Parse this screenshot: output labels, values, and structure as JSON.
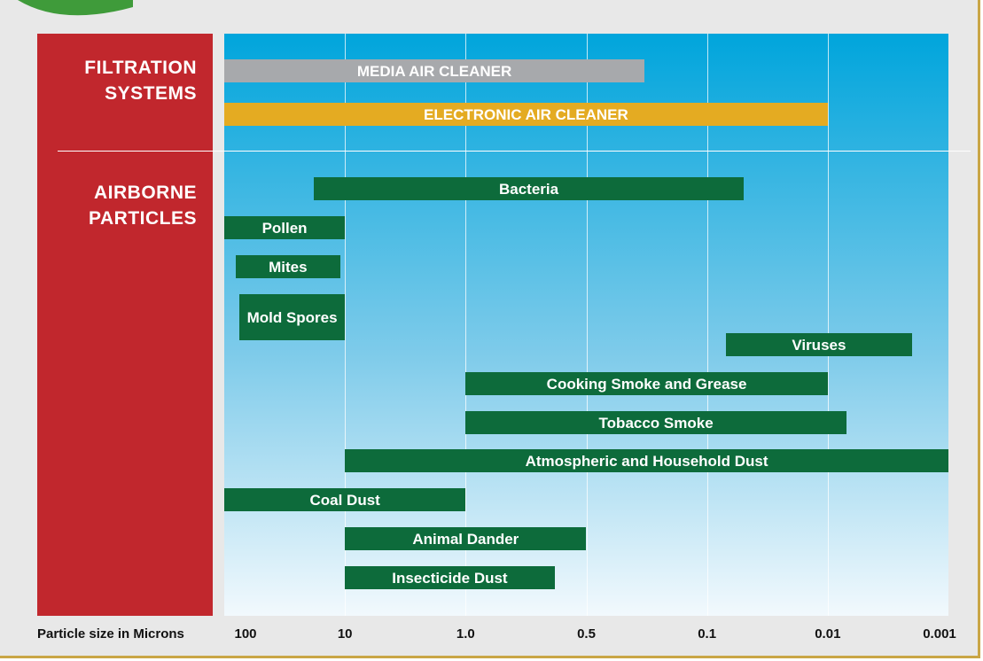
{
  "chart_data": {
    "type": "range-bar",
    "x_label": "Particle size in Microns",
    "group_labels": [
      "FILTRATION SYSTEMS",
      "AIRBORNE PARTICLES"
    ],
    "xlim": [
      100,
      0.001
    ],
    "xticks": [
      100,
      10,
      {
        "value": 1,
        "label": "1.0"
      },
      0.5,
      0.1,
      0.01,
      0.001
    ],
    "grid": true,
    "bars": [
      {
        "label": "MEDIA AIR CLEANER",
        "start": 100,
        "end": 0.23,
        "color": "#a7a9ac"
      },
      {
        "label": "ELECTRONIC AIR CLEANER",
        "start": 100,
        "end": 0.01,
        "color": "#e4ab22"
      },
      {
        "label": "Bacteria",
        "start": 18,
        "end": 0.05,
        "color": "#0d6b3b"
      },
      {
        "label": "Pollen",
        "start": 100,
        "end": 10,
        "color": "#0d6b3b"
      },
      {
        "label": "Mites",
        "start": 80,
        "end": 11,
        "color": "#0d6b3b"
      },
      {
        "label": "Mold Spores",
        "start": 75,
        "end": 10,
        "color": "#0d6b3b"
      },
      {
        "label": "Viruses",
        "start": 0.07,
        "end": 0.002,
        "color": "#0d6b3b"
      },
      {
        "label": "Cooking Smoke and Grease",
        "start": 1,
        "end": 0.01,
        "color": "#0d6b3b"
      },
      {
        "label": "Tobacco Smoke",
        "start": 1,
        "end": 0.007,
        "color": "#0d6b3b"
      },
      {
        "label": "Atmospheric and Household Dust",
        "start": 10,
        "end": 0.001,
        "color": "#0d6b3b"
      },
      {
        "label": "Coal Dust",
        "start": 100,
        "end": 1,
        "color": "#0d6b3b"
      },
      {
        "label": "Animal Dander",
        "start": 10,
        "end": 0.5,
        "color": "#0d6b3b"
      },
      {
        "label": "Insecticide Dust",
        "start": 10,
        "end": 0.6,
        "color": "#0d6b3b"
      }
    ]
  }
}
